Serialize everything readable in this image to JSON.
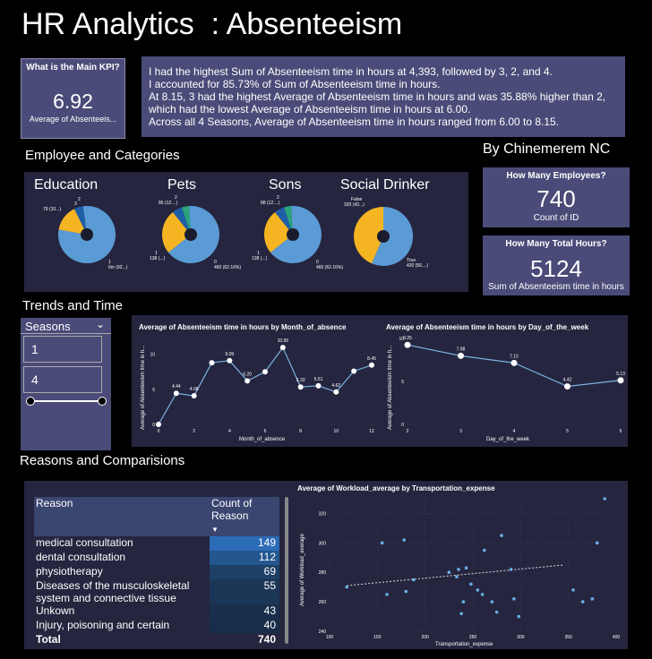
{
  "title": "HR Analytics  : Absenteeism",
  "kpi_main": {
    "question": "What is the Main KPI?",
    "value": "6.92",
    "label": "Average of Absenteeis..."
  },
  "insights": [
    "I had the highest Sum of Absenteeism time in hours at 4,393, followed by 3, 2, and 4.",
    "I accounted for 85.73% of Sum of Absenteeism time in hours.",
    "At  8.15, 3 had the highest  Average of Absenteeism time in hours and was 35.88% higher than 2, which had the lowest Average of Absenteeism time in hours at 6.00.",
    "Across all 4 Seasons,  Average of  Absenteeism time in hours ranged from 6.00 to 8.15."
  ],
  "sections": {
    "employee": "Employee and Categories",
    "trends": "Trends and Time",
    "reasons": "Reasons and Comparisions"
  },
  "author": "By Chinemerem NC",
  "kpi_employees": {
    "question": "How Many Employees?",
    "value": "740",
    "label": "Count of ID"
  },
  "kpi_hours": {
    "question": "How Many Total Hours?",
    "value": "5124",
    "label": "Sum of Absenteeism time in hours"
  },
  "pies": [
    {
      "title": "Education",
      "labels": [
        "1",
        "6m (92...)",
        "79 (10...)",
        "2",
        "3"
      ]
    },
    {
      "title": "Pets",
      "labels": [
        "2",
        "86 (12....)",
        "1",
        "138 (...)",
        "0",
        "460 (62.16%)"
      ]
    },
    {
      "title": "Sons",
      "labels": [
        "2",
        "88 (12....)",
        "1",
        "138 (...)",
        "0",
        "460 (62.16%)"
      ]
    },
    {
      "title": "Social Drinker",
      "labels": [
        "False",
        "320 (43...)",
        "True",
        "420 (56....)"
      ]
    }
  ],
  "slicer": {
    "title": "Seasons",
    "items": [
      "1",
      "4"
    ]
  },
  "colors": {
    "pie_blue": "#5b9bd5",
    "pie_yellow": "#f5b522",
    "pie_dark": "#1f5fa8",
    "pie_green": "#2aa27a",
    "panel": "#4a4b78",
    "dark_panel": "#25253f"
  },
  "chart_data": [
    {
      "type": "line",
      "title": "Average of Absenteeism time in hours by Month_of_absence",
      "xlabel": "Month_of_absence",
      "ylabel": "Average of Absenteeism time in h...",
      "x": [
        0,
        1,
        2,
        3,
        4,
        5,
        6,
        7,
        8,
        9,
        10,
        11,
        12
      ],
      "values": [
        0,
        4.44,
        4.08,
        8.8,
        9.09,
        6.2,
        7.5,
        10.96,
        5.33,
        5.51,
        4.62,
        7.6,
        8.45
      ],
      "data_labels": [
        "",
        "4.44",
        "4.08",
        "",
        "9.09",
        "6.20",
        "",
        "10.96",
        "5.33",
        "5.51",
        "4.62",
        "",
        "8.45"
      ],
      "xticks": [
        "0",
        "2",
        "4",
        "6",
        "8",
        "10",
        "12"
      ],
      "yticks": [
        "0",
        "5",
        "10"
      ],
      "xlim": [
        0,
        12
      ],
      "ylim": [
        0,
        12
      ]
    },
    {
      "type": "line",
      "title": "Average of Absenteeism time in hours by Day_of_the_week",
      "xlabel": "Day_of_the_week",
      "ylabel": "Average of Absenteeism time in h...",
      "x": [
        2,
        3,
        4,
        5,
        6
      ],
      "values": [
        9.25,
        7.98,
        7.15,
        4.42,
        5.13
      ],
      "data_labels": [
        "9.25",
        "7.98",
        "7.15",
        "4.42",
        "5.13"
      ],
      "xticks": [
        "2",
        "3",
        "4",
        "5",
        "6"
      ],
      "yticks": [
        "0",
        "5",
        "10"
      ],
      "xlim": [
        2,
        6
      ],
      "ylim": [
        0,
        10
      ]
    },
    {
      "type": "table",
      "columns": [
        "Reason",
        "Count of Reason"
      ],
      "rows": [
        {
          "reason": "medical consultation",
          "count": "149",
          "bg": "#2c6cb6"
        },
        {
          "reason": "dental consultation",
          "count": "112",
          "bg": "#24578f"
        },
        {
          "reason": "physiotherapy",
          "count": "69",
          "bg": "#1e3f66"
        },
        {
          "reason": "Diseases of the musculoskeletal system and connective tissue",
          "count": "55",
          "bg": "#1b3656"
        },
        {
          "reason": "Unkown",
          "count": "43",
          "bg": "#192f4c"
        },
        {
          "reason": "Injury, poisoning and certain",
          "count": "40",
          "bg": "#182d49"
        }
      ],
      "total": {
        "label": "Total",
        "count": "740"
      }
    },
    {
      "type": "scatter",
      "title": "Average of Workload_average by Transportation_expense",
      "xlabel": "Transportation_expense",
      "ylabel": "Average of Workload_average",
      "xticks": [
        "100",
        "150",
        "200",
        "250",
        "300",
        "350",
        "400"
      ],
      "yticks": [
        "240",
        "260",
        "280",
        "300",
        "320"
      ],
      "xlim": [
        100,
        400
      ],
      "ylim": [
        240,
        330
      ],
      "points": [
        [
          118,
          270
        ],
        [
          155,
          300
        ],
        [
          160,
          265
        ],
        [
          178,
          302
        ],
        [
          180,
          267
        ],
        [
          188,
          275
        ],
        [
          225,
          280
        ],
        [
          233,
          277
        ],
        [
          235,
          282
        ],
        [
          238,
          252
        ],
        [
          240,
          260
        ],
        [
          243,
          283
        ],
        [
          248,
          272
        ],
        [
          255,
          268
        ],
        [
          260,
          265
        ],
        [
          262,
          295
        ],
        [
          270,
          260
        ],
        [
          275,
          253
        ],
        [
          280,
          305
        ],
        [
          290,
          282
        ],
        [
          293,
          262
        ],
        [
          298,
          250
        ],
        [
          355,
          268
        ],
        [
          365,
          260
        ],
        [
          375,
          262
        ],
        [
          380,
          300
        ],
        [
          388,
          330
        ]
      ],
      "trend": [
        [
          118,
          271
        ],
        [
          345,
          285
        ]
      ]
    }
  ]
}
